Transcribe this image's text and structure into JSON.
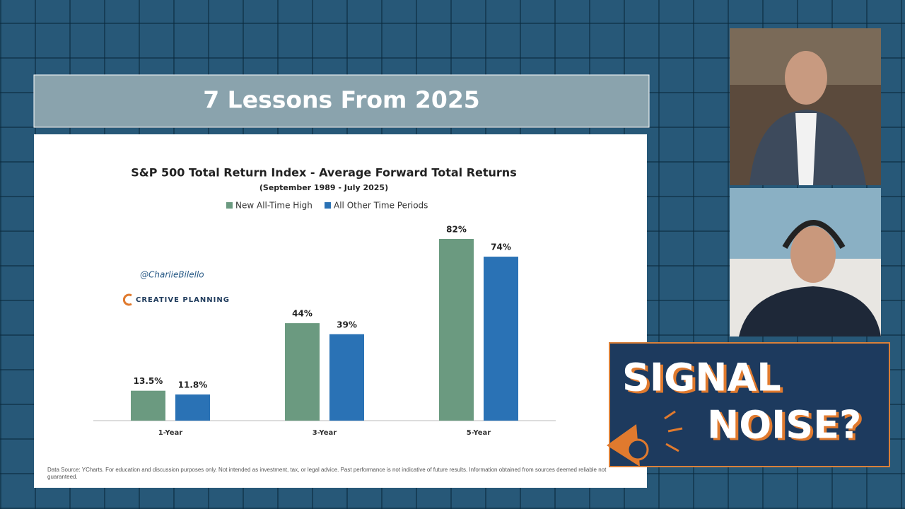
{
  "header": {
    "title": "7 Lessons From 2025"
  },
  "chart_data": {
    "type": "bar",
    "title": "S&P 500 Total Return Index - Average Forward Total Returns",
    "subtitle": "(September 1989 - July 2025)",
    "categories": [
      "1-Year",
      "3-Year",
      "5-Year"
    ],
    "series": [
      {
        "name": "New All-Time High",
        "color": "#6b9a80",
        "values": [
          13.5,
          44,
          82
        ],
        "value_labels": [
          "13.5%",
          "44%",
          "82%"
        ]
      },
      {
        "name": "All Other Time Periods",
        "color": "#2a72b5",
        "values": [
          11.8,
          39,
          74
        ],
        "value_labels": [
          "11.8%",
          "39%",
          "74%"
        ]
      }
    ],
    "legend": "top"
  },
  "watermark": {
    "handle": "@CharlieBilello",
    "logo": "CREATIVE PLANNING"
  },
  "footnote": "Data Source: YCharts. For education and discussion purposes only. Not intended as investment, tax, or legal advice. Past performance is not indicative of future results. Information obtained from sources deemed reliable not guaranteed.",
  "show_logo": {
    "line1": "SIGNAL",
    "line2": "NOISE?"
  }
}
